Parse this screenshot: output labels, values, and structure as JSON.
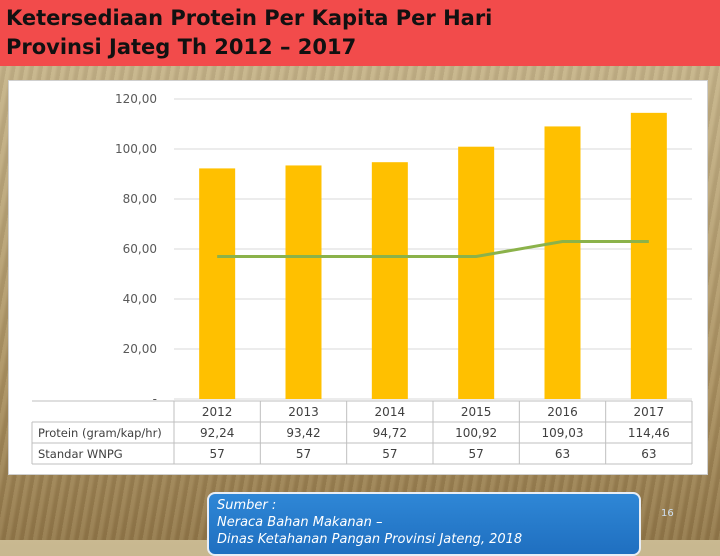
{
  "slide": {
    "title_line1": "Ketersediaan Protein Per Kapita Per Hari",
    "title_line2": "Provinsi Jateg Th 2012 – 2017",
    "source_line1": "Sumber :",
    "source_line2": "Neraca Bahan Makanan –",
    "source_line3": "Dinas Ketahanan Pangan  Provinsi Jateng, 2018",
    "page_number": "16",
    "colors": {
      "title_bg": "#f24b4b",
      "bar": "#ffc000",
      "line": "#8bb24a",
      "source_bg": "#2577c9"
    }
  },
  "chart_data": {
    "type": "bar",
    "categories": [
      "2012",
      "2013",
      "2014",
      "2015",
      "2016",
      "2017"
    ],
    "series": [
      {
        "name": "Protein (gram/kap/hr)",
        "kind": "bar",
        "color": "#ffc000",
        "values": [
          92.24,
          93.42,
          94.72,
          100.92,
          109.03,
          114.46
        ],
        "labels": [
          "92,24",
          "93,42",
          "94,72",
          "100,92",
          "109,03",
          "114,46"
        ]
      },
      {
        "name": "Standar WNPG",
        "kind": "line",
        "color": "#8bb24a",
        "values": [
          57,
          57,
          57,
          57,
          63,
          63
        ],
        "labels": [
          "57",
          "57",
          "57",
          "57",
          "63",
          "63"
        ]
      }
    ],
    "y_ticks": [
      "120,00",
      "100,00",
      "80,00",
      "60,00",
      "40,00",
      "20,00",
      "-"
    ],
    "y_tick_values": [
      120,
      100,
      80,
      60,
      40,
      20,
      0
    ],
    "ylim": [
      0,
      120
    ],
    "grid": true,
    "legend": "data-table-below"
  }
}
